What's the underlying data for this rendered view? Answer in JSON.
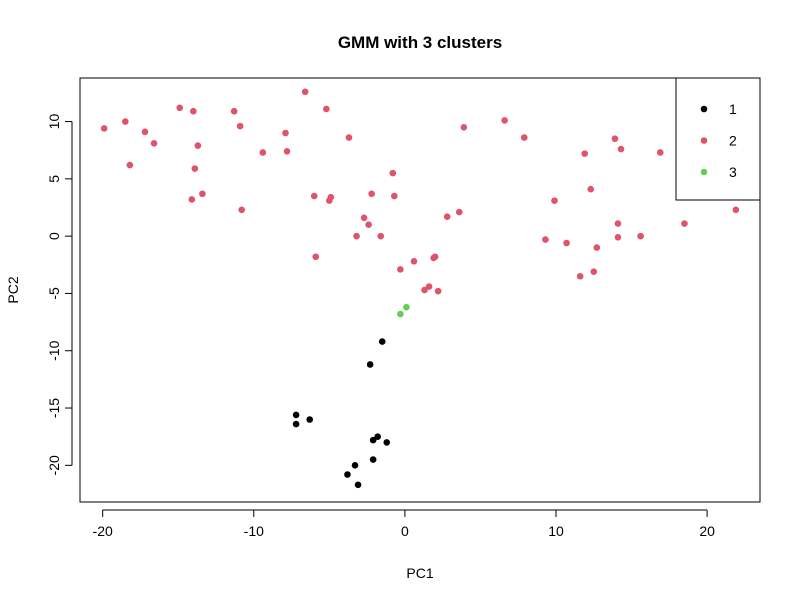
{
  "chart_data": {
    "type": "scatter",
    "title": "GMM with 3 clusters",
    "xlabel": "PC1",
    "ylabel": "PC2",
    "xlim": [
      -21.5,
      23.5
    ],
    "ylim": [
      -23.2,
      13.8
    ],
    "xticks": [
      -20,
      -10,
      0,
      10,
      20
    ],
    "yticks": [
      -20,
      -15,
      -10,
      -5,
      0,
      5,
      10
    ],
    "grid": false,
    "legend_position": "top-right",
    "series": [
      {
        "name": "1",
        "color": "#000000",
        "points": [
          [
            -1.5,
            -9.2
          ],
          [
            -2.3,
            -11.2
          ],
          [
            -7.2,
            -15.6
          ],
          [
            -7.2,
            -16.4
          ],
          [
            -6.3,
            -16.0
          ],
          [
            -2.1,
            -17.8
          ],
          [
            -1.8,
            -17.5
          ],
          [
            -1.2,
            -18.0
          ],
          [
            -2.1,
            -19.5
          ],
          [
            -3.3,
            -20.0
          ],
          [
            -3.8,
            -20.8
          ],
          [
            -3.1,
            -21.7
          ]
        ]
      },
      {
        "name": "2",
        "color": "#DF536B",
        "points": [
          [
            -19.9,
            9.4
          ],
          [
            -18.5,
            10.0
          ],
          [
            -17.2,
            9.1
          ],
          [
            -16.6,
            8.1
          ],
          [
            -18.2,
            6.2
          ],
          [
            -14.9,
            11.2
          ],
          [
            -14.0,
            10.9
          ],
          [
            -13.7,
            7.9
          ],
          [
            -13.9,
            5.9
          ],
          [
            -14.1,
            3.2
          ],
          [
            -13.4,
            3.7
          ],
          [
            -11.3,
            10.9
          ],
          [
            -10.9,
            9.6
          ],
          [
            -9.4,
            7.3
          ],
          [
            -7.9,
            9.0
          ],
          [
            -7.8,
            7.4
          ],
          [
            -10.8,
            2.3
          ],
          [
            -6.6,
            12.6
          ],
          [
            -5.2,
            11.1
          ],
          [
            -3.7,
            8.6
          ],
          [
            -6.0,
            3.5
          ],
          [
            -4.9,
            3.4
          ],
          [
            -5.0,
            3.1
          ],
          [
            -5.9,
            -1.8
          ],
          [
            -2.2,
            3.7
          ],
          [
            -0.8,
            5.5
          ],
          [
            -0.7,
            3.5
          ],
          [
            -2.7,
            1.6
          ],
          [
            -2.4,
            1.0
          ],
          [
            -3.2,
            0.0
          ],
          [
            -1.6,
            0.0
          ],
          [
            -0.3,
            -2.9
          ],
          [
            0.6,
            -2.2
          ],
          [
            1.3,
            -4.7
          ],
          [
            1.6,
            -4.4
          ],
          [
            1.9,
            -1.9
          ],
          [
            2.0,
            -1.8
          ],
          [
            2.2,
            -4.8
          ],
          [
            2.8,
            1.7
          ],
          [
            3.6,
            2.1
          ],
          [
            3.9,
            9.5
          ],
          [
            6.6,
            10.1
          ],
          [
            7.9,
            8.6
          ],
          [
            9.3,
            -0.3
          ],
          [
            9.9,
            3.1
          ],
          [
            10.7,
            -0.6
          ],
          [
            11.6,
            -3.5
          ],
          [
            11.9,
            7.2
          ],
          [
            12.3,
            4.1
          ],
          [
            12.5,
            -3.1
          ],
          [
            12.7,
            -1.0
          ],
          [
            13.9,
            8.5
          ],
          [
            14.3,
            7.6
          ],
          [
            14.1,
            -0.1
          ],
          [
            14.1,
            1.1
          ],
          [
            15.6,
            0.0
          ],
          [
            16.9,
            7.3
          ],
          [
            18.5,
            1.1
          ],
          [
            21.9,
            2.3
          ]
        ]
      },
      {
        "name": "3",
        "color": "#61D04F",
        "points": [
          [
            0.1,
            -6.2
          ],
          [
            -0.3,
            -6.8
          ]
        ]
      }
    ]
  }
}
